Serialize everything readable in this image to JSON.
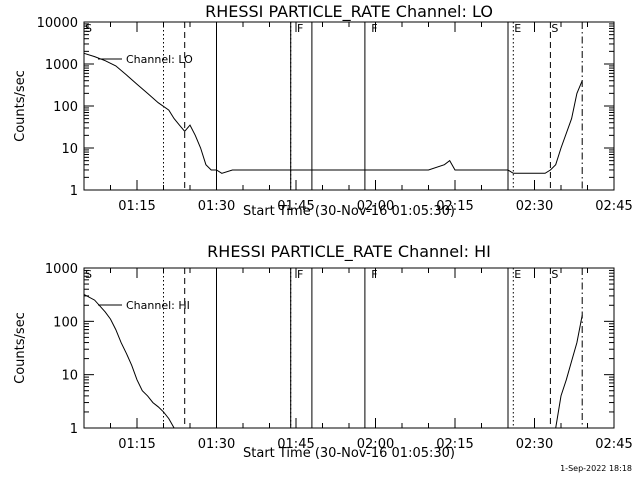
{
  "footer": "1-Sep-2022 18:18",
  "chart_data": [
    {
      "type": "line",
      "title": "RHESSI PARTICLE_RATE Channel: LO",
      "xlabel": "Start Time (30-Nov-16 01:05:30)",
      "ylabel": "Counts/sec",
      "yscale": "log",
      "ylim": [
        1,
        10000
      ],
      "xlim": [
        "01:05",
        "02:45"
      ],
      "x_ticks": [
        "01:15",
        "01:30",
        "01:45",
        "02:00",
        "02:15",
        "02:30",
        "02:45"
      ],
      "y_ticks": [
        "1",
        "10",
        "100",
        "1000",
        "10000"
      ],
      "legend": "Channel: LO",
      "event_markers": [
        {
          "label": "S",
          "time": "01:05"
        },
        {
          "label": "F",
          "time": "01:45"
        },
        {
          "label": "F",
          "time": "01:59"
        },
        {
          "label": "E",
          "time": "02:26"
        },
        {
          "label": "S",
          "time": "02:33"
        }
      ],
      "vlines": [
        {
          "time": "01:20",
          "style": "dotted"
        },
        {
          "time": "01:24",
          "style": "dashed"
        },
        {
          "time": "01:30",
          "style": "solid"
        },
        {
          "time": "01:44",
          "style": "solid"
        },
        {
          "time": "01:44",
          "style": "dotted"
        },
        {
          "time": "01:48",
          "style": "solid"
        },
        {
          "time": "01:58",
          "style": "solid"
        },
        {
          "time": "02:25",
          "style": "solid"
        },
        {
          "time": "02:26",
          "style": "dotted"
        },
        {
          "time": "02:33",
          "style": "dashed"
        },
        {
          "time": "02:39",
          "style": "dashdot"
        }
      ],
      "series": [
        {
          "x": [
            "01:05",
            "01:07",
            "01:09",
            "01:11",
            "01:13",
            "01:15",
            "01:17",
            "01:19",
            "01:21",
            "01:22",
            "01:23",
            "01:24",
            "01:25",
            "01:26",
            "01:27",
            "01:28",
            "01:29",
            "01:30",
            "01:31",
            "01:33",
            "01:36",
            "01:40",
            "01:44",
            "01:47",
            "01:50",
            "01:55",
            "02:00",
            "02:05",
            "02:10",
            "02:13",
            "02:14",
            "02:15",
            "02:18",
            "02:22",
            "02:25",
            "02:26",
            "02:28",
            "02:30",
            "02:32",
            "02:33",
            "02:34",
            "02:35",
            "02:37",
            "02:38",
            "02:39"
          ],
          "values": [
            1800,
            1500,
            1200,
            900,
            550,
            330,
            200,
            120,
            80,
            50,
            35,
            25,
            35,
            20,
            10,
            4,
            3,
            3,
            2.5,
            3,
            3,
            3,
            3,
            3,
            3,
            3,
            3,
            3,
            3,
            4,
            5,
            3,
            3,
            3,
            3,
            2.5,
            2.5,
            2.5,
            2.5,
            3,
            4,
            10,
            50,
            200,
            400
          ]
        }
      ]
    },
    {
      "type": "line",
      "title": "RHESSI PARTICLE_RATE Channel: HI",
      "xlabel": "Start Time (30-Nov-16 01:05:30)",
      "ylabel": "Counts/sec",
      "yscale": "log",
      "ylim": [
        1,
        1000
      ],
      "xlim": [
        "01:05",
        "02:45"
      ],
      "x_ticks": [
        "01:15",
        "01:30",
        "01:45",
        "02:00",
        "02:15",
        "02:30",
        "02:45"
      ],
      "y_ticks": [
        "1",
        "10",
        "100",
        "1000"
      ],
      "legend": "Channel: HI",
      "event_markers": [
        {
          "label": "S",
          "time": "01:05"
        },
        {
          "label": "F",
          "time": "01:45"
        },
        {
          "label": "F",
          "time": "01:59"
        },
        {
          "label": "E",
          "time": "02:26"
        },
        {
          "label": "S",
          "time": "02:33"
        }
      ],
      "vlines": [
        {
          "time": "01:20",
          "style": "dotted"
        },
        {
          "time": "01:24",
          "style": "dashed"
        },
        {
          "time": "01:30",
          "style": "solid"
        },
        {
          "time": "01:44",
          "style": "solid"
        },
        {
          "time": "01:44",
          "style": "dotted"
        },
        {
          "time": "01:48",
          "style": "solid"
        },
        {
          "time": "01:58",
          "style": "solid"
        },
        {
          "time": "02:25",
          "style": "solid"
        },
        {
          "time": "02:26",
          "style": "dotted"
        },
        {
          "time": "02:33",
          "style": "dashed"
        },
        {
          "time": "02:39",
          "style": "dashdot"
        }
      ],
      "series": [
        {
          "x": [
            "01:05",
            "01:07",
            "01:09",
            "01:10",
            "01:11",
            "01:12",
            "01:13",
            "01:14",
            "01:15",
            "01:16",
            "01:17",
            "01:18",
            "01:19",
            "01:20",
            "01:21",
            "01:22"
          ],
          "values": [
            320,
            250,
            150,
            110,
            70,
            40,
            25,
            15,
            8,
            5,
            4,
            3,
            2.5,
            2,
            1.5,
            1
          ]
        },
        {
          "x": [
            "02:34",
            "02:35",
            "02:36",
            "02:37",
            "02:38",
            "02:39"
          ],
          "values": [
            1,
            4,
            8,
            18,
            40,
            130
          ]
        }
      ]
    }
  ]
}
